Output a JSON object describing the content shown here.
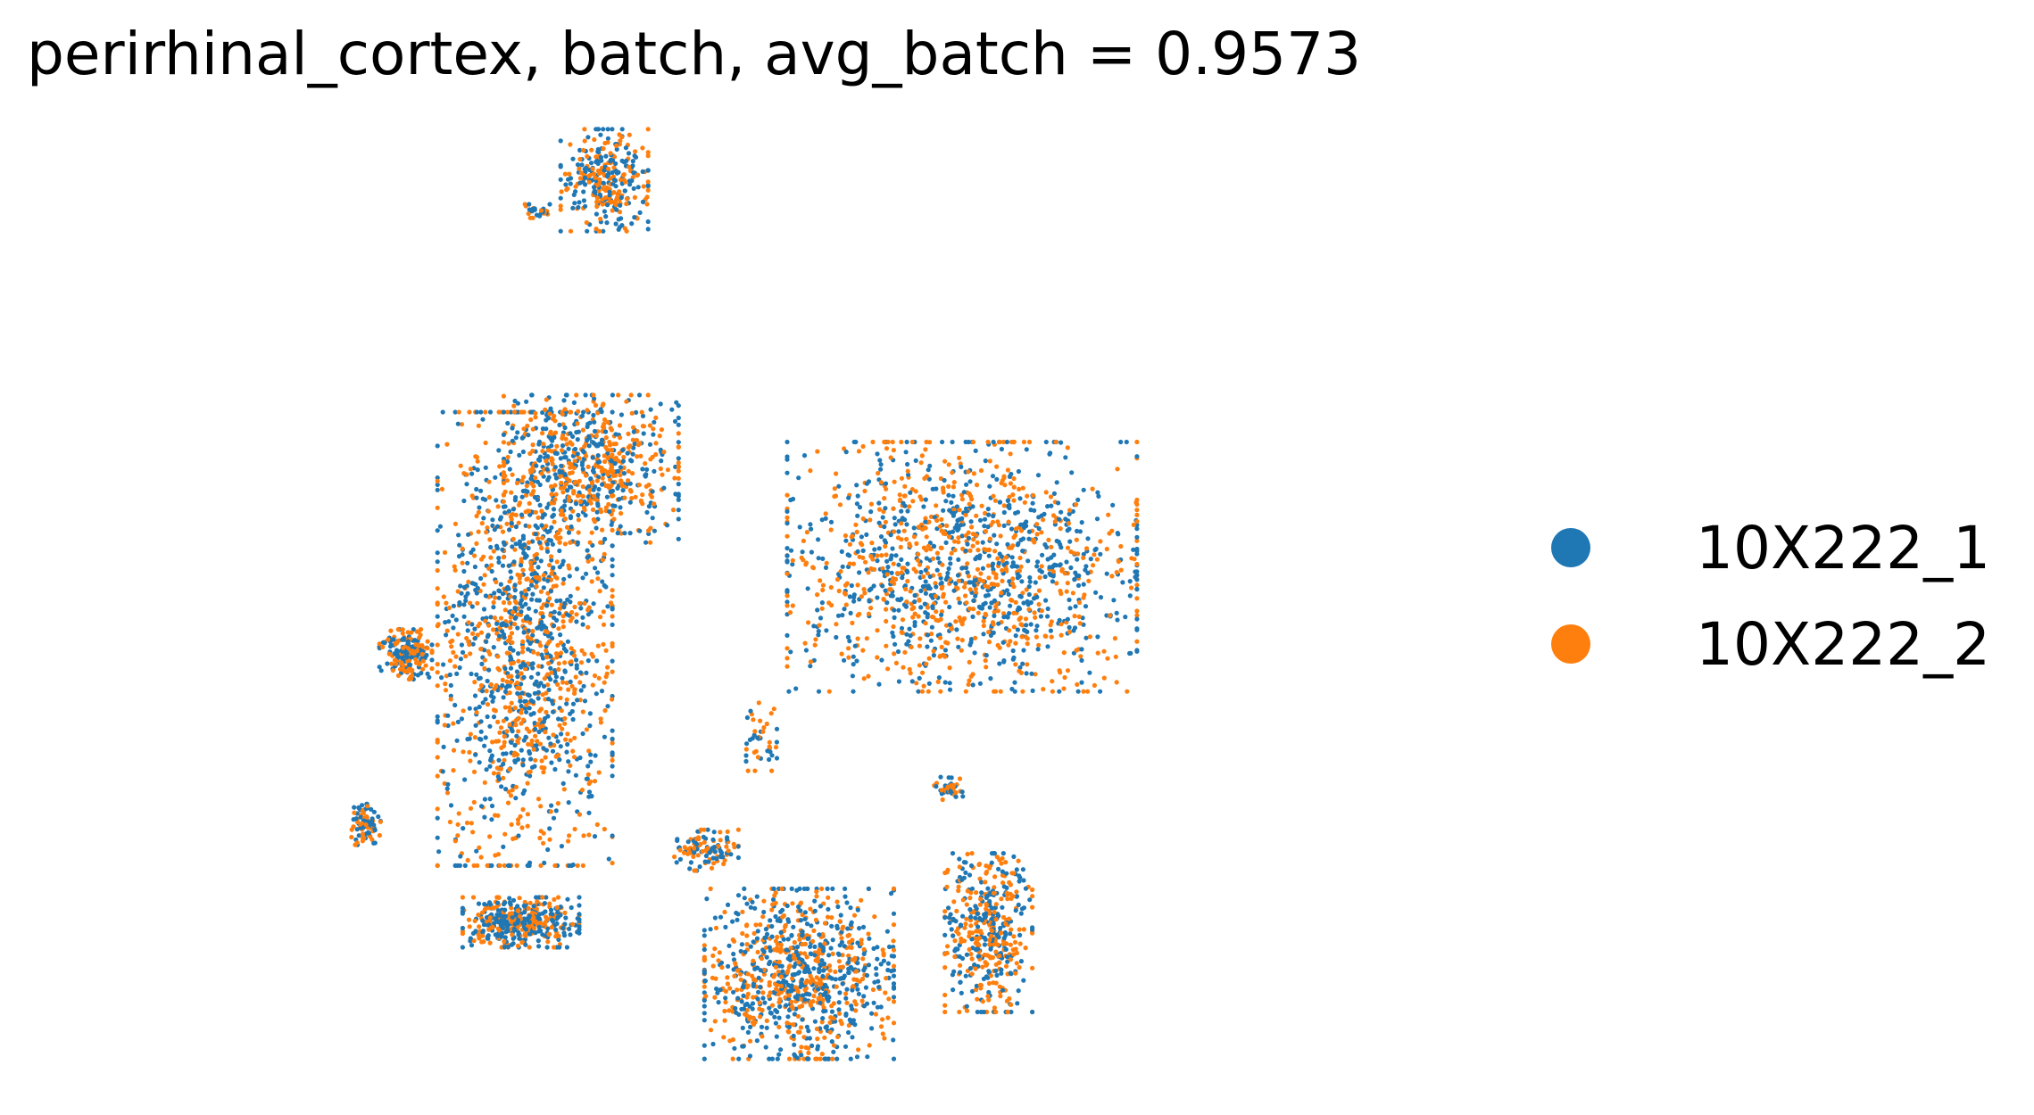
{
  "chart_data": {
    "type": "scatter",
    "title": "perirhinal_cortex, batch, avg_batch = 0.9573",
    "xlabel": "",
    "ylabel": "",
    "axes_visible": false,
    "grid": false,
    "legend_position": "right",
    "series": [
      {
        "name": "10X222_1",
        "color": "#1f77b4"
      },
      {
        "name": "10X222_2",
        "color": "#ff7f0e"
      }
    ],
    "clusters": [
      {
        "center": [
          0.335,
          0.145
        ],
        "spread": [
          0.03,
          0.045
        ],
        "density": 0.22
      },
      {
        "center": [
          0.282,
          0.175
        ],
        "spread": [
          0.012,
          0.006
        ],
        "density": 0.02
      },
      {
        "center": [
          0.185,
          0.605
        ],
        "spread": [
          0.018,
          0.022
        ],
        "density": 0.15
      },
      {
        "center": [
          0.275,
          0.59
        ],
        "spread": [
          0.06,
          0.2
        ],
        "density": 1.0
      },
      {
        "center": [
          0.325,
          0.425
        ],
        "spread": [
          0.06,
          0.065
        ],
        "density": 0.45
      },
      {
        "center": [
          0.605,
          0.52
        ],
        "spread": [
          0.12,
          0.11
        ],
        "density": 1.0
      },
      {
        "center": [
          0.452,
          0.685
        ],
        "spread": [
          0.012,
          0.03
        ],
        "density": 0.03
      },
      {
        "center": [
          0.155,
          0.77
        ],
        "spread": [
          0.01,
          0.018
        ],
        "density": 0.06
      },
      {
        "center": [
          0.272,
          0.865
        ],
        "spread": [
          0.04,
          0.022
        ],
        "density": 0.3
      },
      {
        "center": [
          0.482,
          0.915
        ],
        "spread": [
          0.065,
          0.075
        ],
        "density": 0.65
      },
      {
        "center": [
          0.625,
          0.875
        ],
        "spread": [
          0.03,
          0.07
        ],
        "density": 0.32
      },
      {
        "center": [
          0.412,
          0.795
        ],
        "spread": [
          0.022,
          0.018
        ],
        "density": 0.08
      },
      {
        "center": [
          0.595,
          0.735
        ],
        "spread": [
          0.01,
          0.01
        ],
        "density": 0.03
      }
    ]
  }
}
